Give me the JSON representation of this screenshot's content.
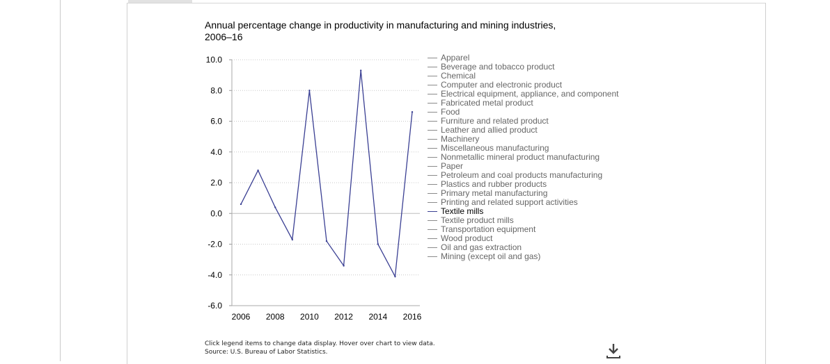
{
  "chart_data": {
    "type": "line",
    "title": "Annual percentage change in productivity in manufacturing and mining industries, 2006–16",
    "x": [
      2006,
      2007,
      2008,
      2009,
      2010,
      2011,
      2012,
      2013,
      2014,
      2015,
      2016
    ],
    "x_ticks": [
      "2006",
      "2008",
      "2010",
      "2012",
      "2014",
      "2016"
    ],
    "y_ticks": [
      "10.0",
      "8.0",
      "6.0",
      "4.0",
      "2.0",
      "0.0",
      "-2.0",
      "-4.0",
      "-6.0"
    ],
    "ylim": [
      -6.0,
      10.0
    ],
    "xlim": [
      2006,
      2016
    ],
    "grid": true,
    "series": [
      {
        "name": "Textile mills",
        "color": "#3a3f93",
        "values": [
          0.6,
          2.8,
          0.4,
          -1.7,
          8.0,
          -1.8,
          -3.4,
          9.3,
          -2.0,
          -4.1,
          6.6
        ]
      }
    ],
    "legend_placement": "right",
    "legend": [
      "Apparel",
      "Beverage and tobacco product",
      "Chemical",
      "Computer and electronic product",
      "Electrical equipment, appliance, and component",
      "Fabricated metal product",
      "Food",
      "Furniture and related product",
      "Leather and allied product",
      "Machinery",
      "Miscellaneous manufacturing",
      "Nonmetallic mineral product manufacturing",
      "Paper",
      "Petroleum and coal products manufacturing",
      "Plastics and rubber products",
      "Primary metal manufacturing",
      "Printing and related support activities",
      "Textile mills",
      "Textile product mills",
      "Transportation equipment",
      "Wood product",
      "Oil and gas extraction",
      "Mining (except oil and gas)"
    ],
    "active_legend": "Textile mills"
  },
  "footer": {
    "line1": "Click legend items to change data display. Hover over chart to view data.",
    "line2": "Source: U.S. Bureau of Labor Statistics."
  },
  "icons": {
    "download": "download-icon"
  },
  "colors": {
    "series": "#3a3f93",
    "legend_inactive": "#666666",
    "grid": "#cccccc"
  }
}
